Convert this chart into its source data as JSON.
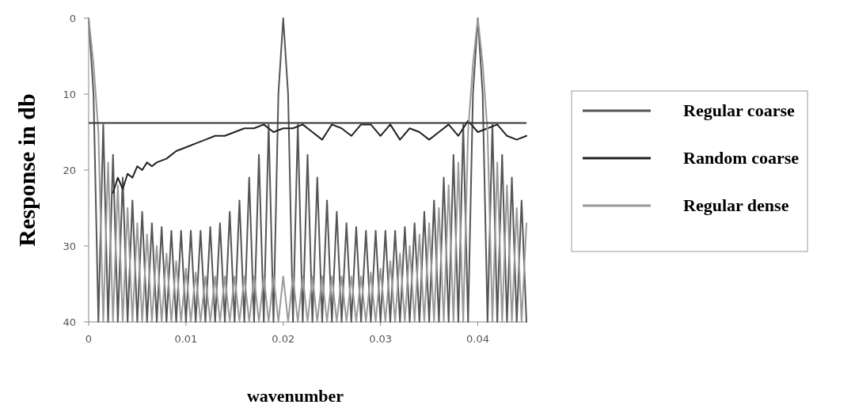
{
  "chart_data": {
    "type": "line",
    "xlabel": "wavenumber",
    "ylabel": "Response in db",
    "x": [
      0,
      0.0005,
      0.001,
      0.0015,
      0.002,
      0.0025,
      0.003,
      0.0035,
      0.004,
      0.0045,
      0.005,
      0.0055,
      0.006,
      0.0065,
      0.007,
      0.0075,
      0.008,
      0.0085,
      0.009,
      0.0095,
      0.01,
      0.0105,
      0.011,
      0.0115,
      0.012,
      0.0125,
      0.013,
      0.0135,
      0.014,
      0.0145,
      0.015,
      0.0155,
      0.016,
      0.0165,
      0.017,
      0.0175,
      0.018,
      0.0185,
      0.019,
      0.0195,
      0.02,
      0.0205,
      0.021,
      0.0215,
      0.022,
      0.0225,
      0.023,
      0.0235,
      0.024,
      0.0245,
      0.025,
      0.0255,
      0.026,
      0.0265,
      0.027,
      0.0275,
      0.028,
      0.0285,
      0.029,
      0.0295,
      0.03,
      0.0305,
      0.031,
      0.0315,
      0.032,
      0.0325,
      0.033,
      0.0335,
      0.034,
      0.0345,
      0.035,
      0.0355,
      0.036,
      0.0365,
      0.037,
      0.0375,
      0.038,
      0.0385,
      0.039,
      0.0395,
      0.04,
      0.0405,
      0.041,
      0.0415,
      0.042,
      0.0425,
      0.043,
      0.0435,
      0.044,
      0.0445,
      0.045
    ],
    "series": [
      {
        "name": "Regular coarse",
        "color": "#555555",
        "values": [
          0,
          10,
          40,
          14,
          40,
          18,
          40,
          21,
          40,
          24,
          40,
          25.5,
          40,
          27,
          40,
          27.5,
          40,
          28,
          40,
          28,
          40,
          28,
          40,
          28,
          40,
          27.5,
          40,
          27,
          40,
          25.5,
          40,
          24,
          40,
          21,
          40,
          18,
          40,
          14,
          40,
          10,
          0,
          10,
          40,
          14,
          40,
          18,
          40,
          21,
          40,
          24,
          40,
          25.5,
          40,
          27,
          40,
          27.5,
          40,
          28,
          40,
          28,
          40,
          28,
          40,
          28,
          40,
          27.5,
          40,
          27,
          40,
          25.5,
          40,
          24,
          40,
          21,
          40,
          18,
          40,
          14,
          40,
          10,
          0,
          10,
          40,
          14,
          40,
          18,
          40,
          21,
          40,
          24,
          40
        ]
      },
      {
        "name": "Random coarse",
        "color": "#222222",
        "x": [
          0.0025,
          0.003,
          0.0035,
          0.004,
          0.0045,
          0.005,
          0.0055,
          0.006,
          0.0065,
          0.007,
          0.008,
          0.009,
          0.01,
          0.011,
          0.012,
          0.013,
          0.014,
          0.015,
          0.016,
          0.017,
          0.018,
          0.019,
          0.02,
          0.021,
          0.022,
          0.023,
          0.024,
          0.0245,
          0.025,
          0.026,
          0.027,
          0.028,
          0.029,
          0.03,
          0.031,
          0.032,
          0.033,
          0.034,
          0.035,
          0.036,
          0.037,
          0.038,
          0.039,
          0.04,
          0.041,
          0.042,
          0.043,
          0.044,
          0.045
        ],
        "values": [
          23,
          21,
          22.5,
          20.5,
          21,
          19.5,
          20,
          19,
          19.5,
          19,
          18.5,
          17.5,
          17,
          16.5,
          16,
          15.5,
          15.5,
          15,
          14.5,
          14.5,
          14,
          15,
          14.5,
          14.5,
          14,
          15,
          16,
          15,
          14,
          14.5,
          15.5,
          14,
          14,
          15.5,
          14,
          16,
          14.5,
          15,
          16,
          15,
          14,
          15.5,
          13.5,
          15,
          14.5,
          14,
          15.5,
          16,
          15.5
        ]
      },
      {
        "name": "Regular dense",
        "color": "#9a9a9a",
        "values": [
          0,
          6,
          15,
          40,
          19,
          40,
          22,
          40,
          25,
          40,
          27,
          40,
          28.5,
          40,
          30,
          40,
          31,
          40,
          32,
          40,
          33,
          40,
          33.5,
          40,
          34,
          40,
          34,
          40,
          34,
          40,
          34,
          40,
          34,
          40,
          34,
          40,
          34,
          40,
          34,
          40,
          34,
          40,
          34,
          40,
          34,
          40,
          34,
          40,
          34,
          40,
          34,
          40,
          34,
          40,
          34,
          40,
          34,
          40,
          33.5,
          40,
          33,
          40,
          32,
          40,
          31,
          40,
          30,
          40,
          28.5,
          40,
          27,
          40,
          25,
          40,
          22,
          40,
          19,
          40,
          15,
          6,
          0,
          6,
          15,
          40,
          19,
          40,
          22,
          40,
          25,
          40,
          27
        ]
      }
    ],
    "ref_lines": [
      {
        "axis": "y",
        "value": 13.8,
        "color": "#333333"
      }
    ],
    "xlim": [
      0,
      0.045
    ],
    "xticks": [
      0,
      0.01,
      0.02,
      0.03,
      0.04
    ],
    "ylim": [
      40,
      0
    ],
    "yticks": [
      0,
      10,
      20,
      30,
      40
    ],
    "grid": false,
    "legend": "right"
  }
}
